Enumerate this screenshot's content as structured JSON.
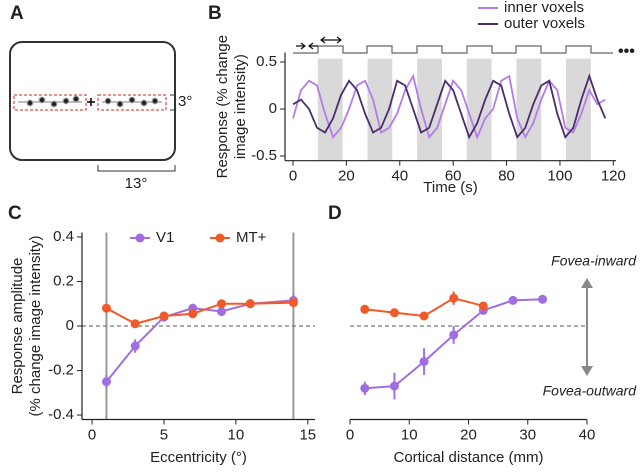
{
  "panel_labels": [
    "A",
    "B",
    "C",
    "D"
  ],
  "diagram": {
    "height_label": "3°",
    "width_label": "13°"
  },
  "chart_data": [
    {
      "type": "line",
      "xlabel": "Time (s)",
      "ylabel": [
        "Response (% change",
        "image intensity)"
      ],
      "x": [
        0,
        3,
        6,
        9,
        12,
        15,
        18,
        21,
        24,
        27,
        30,
        33,
        36,
        39,
        42,
        45,
        48,
        51,
        54,
        57,
        60,
        63,
        66,
        69,
        72,
        75,
        78,
        81,
        84,
        87,
        90,
        93,
        96,
        99,
        102,
        105,
        108,
        111,
        114,
        117
      ],
      "series": [
        {
          "name": "inner voxels",
          "color": "#b57ce8",
          "values": [
            -0.1,
            0.2,
            0.3,
            0.25,
            -0.05,
            -0.3,
            -0.2,
            0.0,
            0.25,
            0.3,
            0.1,
            -0.25,
            -0.2,
            -0.05,
            0.2,
            0.35,
            0.0,
            -0.3,
            -0.2,
            0.05,
            0.3,
            0.2,
            -0.05,
            -0.3,
            -0.1,
            0.0,
            0.3,
            0.35,
            -0.1,
            -0.3,
            -0.15,
            0.1,
            0.3,
            0.2,
            -0.2,
            -0.25,
            -0.05,
            0.2,
            0.05,
            0.1
          ]
        },
        {
          "name": "outer voxels",
          "color": "#4b2d6b",
          "values": [
            0.05,
            0.1,
            0.0,
            -0.2,
            -0.25,
            -0.1,
            0.15,
            0.3,
            0.2,
            -0.05,
            -0.25,
            -0.2,
            0.0,
            0.3,
            0.25,
            0.0,
            -0.25,
            -0.2,
            0.05,
            0.3,
            0.2,
            -0.05,
            -0.3,
            -0.15,
            0.1,
            0.3,
            0.25,
            -0.05,
            -0.3,
            -0.2,
            0.05,
            0.25,
            0.3,
            -0.05,
            -0.3,
            -0.2,
            0.1,
            0.35,
            0.1,
            -0.1
          ]
        }
      ],
      "shaded_x": [
        [
          9.3,
          18.6
        ],
        [
          27.9,
          37.2
        ],
        [
          46.5,
          55.8
        ],
        [
          65.1,
          74.4
        ],
        [
          83.7,
          93
        ],
        [
          102.3,
          111.6
        ]
      ],
      "xlim": [
        -3,
        121
      ],
      "ylim": [
        -0.55,
        0.6
      ],
      "xticks": [
        0,
        20,
        40,
        60,
        80,
        100,
        120
      ],
      "yticks": [
        -0.5,
        0,
        0.5
      ]
    },
    {
      "type": "errorbar",
      "xlabel": "Eccentricity (°)",
      "ylabel": [
        "Response amplitude",
        "(% change image intensity)"
      ],
      "series": [
        {
          "name": "V1",
          "color": "#a06ee0",
          "x": [
            1,
            3,
            5,
            7,
            9,
            11,
            14
          ],
          "values": [
            -0.25,
            -0.09,
            0.04,
            0.08,
            0.065,
            0.1,
            0.115
          ],
          "error": [
            0.03,
            0.03,
            0.02,
            0.02,
            0.015,
            0.02,
            0.03
          ]
        },
        {
          "name": "MT+",
          "color": "#f05a28",
          "x": [
            1,
            3,
            5,
            7,
            9,
            11,
            14
          ],
          "values": [
            0.08,
            0.01,
            0.045,
            0.055,
            0.1,
            0.1,
            0.105
          ],
          "error": [
            0.02,
            0.01,
            0.02,
            0.02,
            0.015,
            0.02,
            0.02
          ]
        }
      ],
      "vlines": [
        1,
        14
      ],
      "hline": 0,
      "xlim": [
        -0.7,
        15.5
      ],
      "ylim": [
        -0.42,
        0.42
      ],
      "xticks": [
        0,
        5,
        10,
        15
      ],
      "yticks": [
        -0.4,
        -0.2,
        0,
        0.2,
        0.4
      ]
    },
    {
      "type": "errorbar",
      "xlabel": "Cortical distance (mm)",
      "annotations": [
        "Fovea-inward",
        "Fovea-outward"
      ],
      "series": [
        {
          "name": "V1",
          "color": "#a06ee0",
          "x": [
            2.5,
            7.5,
            12.5,
            17.5,
            22.5,
            27.5,
            32.5
          ],
          "values": [
            -0.28,
            -0.27,
            -0.16,
            -0.04,
            0.07,
            0.115,
            0.12
          ],
          "error": [
            0.03,
            0.06,
            0.06,
            0.04,
            0.015,
            0.01,
            0.01
          ]
        },
        {
          "name": "MT+",
          "color": "#f05a28",
          "x": [
            2.5,
            7.5,
            12.5,
            17.5,
            22.5
          ],
          "values": [
            0.075,
            0.06,
            0.045,
            0.125,
            0.09
          ],
          "error": [
            0.02,
            0.01,
            0.02,
            0.03,
            0.02
          ]
        }
      ],
      "hline": 0,
      "xlim": [
        0,
        40
      ],
      "ylim": [
        -0.42,
        0.42
      ],
      "xticks": [
        0,
        10,
        20,
        30,
        40
      ]
    }
  ]
}
